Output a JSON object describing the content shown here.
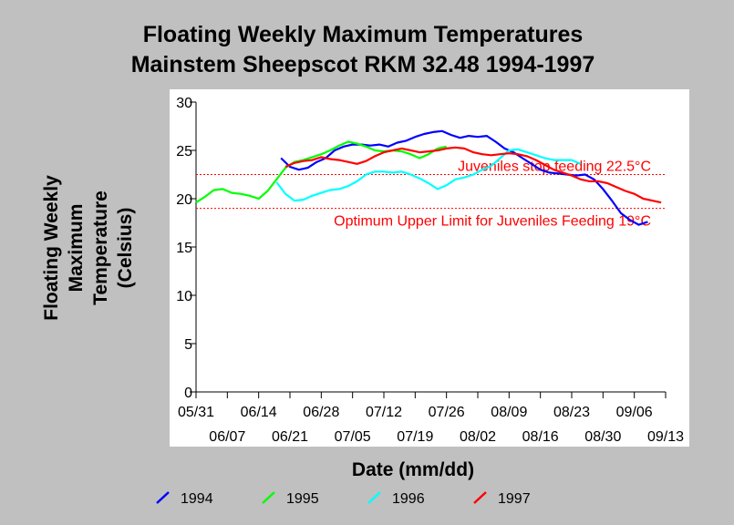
{
  "chart_data": {
    "type": "line",
    "title": [
      "Floating Weekly Maximum Temperatures",
      "Mainstem Sheepscot RKM 32.48 1994-1997"
    ],
    "ylabel": [
      "Floating Weekly",
      "Maximum",
      "Temperature",
      "(Celsius)"
    ],
    "xlabel": "Date (mm/dd)",
    "ylim": [
      0,
      30
    ],
    "yticks": [
      "0",
      "5",
      "10",
      "15",
      "20",
      "25",
      "30"
    ],
    "xlim": [
      0,
      105
    ],
    "xticks": [
      {
        "day": 0,
        "label": "05/31"
      },
      {
        "day": 7,
        "label": "06/07"
      },
      {
        "day": 14,
        "label": "06/14"
      },
      {
        "day": 21,
        "label": "06/21"
      },
      {
        "day": 28,
        "label": "06/28"
      },
      {
        "day": 35,
        "label": "07/05"
      },
      {
        "day": 42,
        "label": "07/12"
      },
      {
        "day": 49,
        "label": "07/19"
      },
      {
        "day": 56,
        "label": "07/26"
      },
      {
        "day": 63,
        "label": "08/02"
      },
      {
        "day": 70,
        "label": "08/09"
      },
      {
        "day": 77,
        "label": "08/16"
      },
      {
        "day": 84,
        "label": "08/23"
      },
      {
        "day": 91,
        "label": "08/30"
      },
      {
        "day": 98,
        "label": "09/06"
      },
      {
        "day": 105,
        "label": "09/13"
      }
    ],
    "grid": false,
    "legend": "bottom",
    "reference_lines": [
      {
        "y": 22.5,
        "label": "Juveniles stop feeding 22.5°C",
        "color": "#ff0000"
      },
      {
        "y": 19,
        "label": "Optimum Upper Limit for Juveniles Feeding 19°C",
        "color": "#ff0000"
      }
    ],
    "series": [
      {
        "name": "1994",
        "color": "#0000ff",
        "points": [
          [
            19,
            24.2
          ],
          [
            21,
            23.3
          ],
          [
            23,
            23.0
          ],
          [
            25,
            23.2
          ],
          [
            27,
            23.8
          ],
          [
            29,
            24.2
          ],
          [
            31,
            25.0
          ],
          [
            33,
            25.4
          ],
          [
            35,
            25.6
          ],
          [
            37,
            25.6
          ],
          [
            39,
            25.5
          ],
          [
            41,
            25.6
          ],
          [
            43,
            25.4
          ],
          [
            45,
            25.8
          ],
          [
            47,
            26.0
          ],
          [
            49,
            26.4
          ],
          [
            51,
            26.7
          ],
          [
            53,
            26.9
          ],
          [
            55,
            27.0
          ],
          [
            57,
            26.6
          ],
          [
            59,
            26.3
          ],
          [
            61,
            26.5
          ],
          [
            63,
            26.4
          ],
          [
            65,
            26.5
          ],
          [
            67,
            25.9
          ],
          [
            69,
            25.2
          ],
          [
            71,
            24.8
          ],
          [
            73,
            24.2
          ],
          [
            75,
            23.6
          ],
          [
            77,
            23.0
          ],
          [
            79,
            22.7
          ],
          [
            81,
            22.6
          ],
          [
            83,
            22.5
          ],
          [
            85,
            22.4
          ],
          [
            87,
            22.5
          ],
          [
            89,
            22.0
          ],
          [
            91,
            21.0
          ],
          [
            93,
            19.8
          ],
          [
            95,
            18.5
          ],
          [
            97,
            17.8
          ],
          [
            99,
            17.3
          ],
          [
            101,
            17.6
          ]
        ]
      },
      {
        "name": "1995",
        "color": "#00ff00",
        "points": [
          [
            0,
            19.6
          ],
          [
            2,
            20.2
          ],
          [
            4,
            20.9
          ],
          [
            6,
            21.0
          ],
          [
            8,
            20.6
          ],
          [
            10,
            20.5
          ],
          [
            12,
            20.3
          ],
          [
            14,
            20.0
          ],
          [
            16,
            20.8
          ],
          [
            18,
            22.0
          ],
          [
            20,
            23.2
          ],
          [
            22,
            23.8
          ],
          [
            24,
            24.0
          ],
          [
            26,
            24.3
          ],
          [
            28,
            24.6
          ],
          [
            30,
            25.0
          ],
          [
            32,
            25.5
          ],
          [
            34,
            25.9
          ],
          [
            36,
            25.7
          ],
          [
            38,
            25.4
          ],
          [
            40,
            25.0
          ],
          [
            42,
            24.9
          ],
          [
            44,
            25.0
          ],
          [
            46,
            24.9
          ],
          [
            48,
            24.6
          ],
          [
            50,
            24.2
          ],
          [
            52,
            24.6
          ],
          [
            54,
            25.2
          ],
          [
            56,
            25.4
          ]
        ]
      },
      {
        "name": "1996",
        "color": "#00ffff",
        "points": [
          [
            18,
            21.7
          ],
          [
            20,
            20.5
          ],
          [
            22,
            19.8
          ],
          [
            24,
            19.9
          ],
          [
            26,
            20.3
          ],
          [
            28,
            20.6
          ],
          [
            30,
            20.9
          ],
          [
            32,
            21.0
          ],
          [
            34,
            21.3
          ],
          [
            36,
            21.8
          ],
          [
            38,
            22.5
          ],
          [
            40,
            22.8
          ],
          [
            42,
            22.8
          ],
          [
            44,
            22.7
          ],
          [
            46,
            22.8
          ],
          [
            48,
            22.5
          ],
          [
            50,
            22.1
          ],
          [
            52,
            21.6
          ],
          [
            54,
            21.0
          ],
          [
            56,
            21.4
          ],
          [
            58,
            22.0
          ],
          [
            60,
            22.2
          ],
          [
            62,
            22.5
          ],
          [
            64,
            23.0
          ],
          [
            66,
            23.4
          ],
          [
            68,
            24.2
          ],
          [
            70,
            25.0
          ],
          [
            72,
            25.1
          ],
          [
            74,
            24.8
          ],
          [
            76,
            24.5
          ],
          [
            78,
            24.2
          ],
          [
            80,
            24.0
          ],
          [
            82,
            24.0
          ],
          [
            84,
            24.0
          ],
          [
            86,
            23.6
          ]
        ]
      },
      {
        "name": "1997",
        "color": "#ff0000",
        "points": [
          [
            20,
            23.3
          ],
          [
            22,
            23.7
          ],
          [
            24,
            23.9
          ],
          [
            26,
            24.0
          ],
          [
            28,
            24.3
          ],
          [
            30,
            24.1
          ],
          [
            32,
            24.0
          ],
          [
            34,
            23.8
          ],
          [
            36,
            23.6
          ],
          [
            38,
            23.9
          ],
          [
            40,
            24.4
          ],
          [
            42,
            24.8
          ],
          [
            44,
            25.0
          ],
          [
            46,
            25.2
          ],
          [
            48,
            25.0
          ],
          [
            50,
            24.8
          ],
          [
            52,
            24.9
          ],
          [
            54,
            25.0
          ],
          [
            56,
            25.2
          ],
          [
            58,
            25.3
          ],
          [
            60,
            25.2
          ],
          [
            62,
            24.8
          ],
          [
            64,
            24.6
          ],
          [
            66,
            24.5
          ],
          [
            68,
            24.6
          ],
          [
            70,
            24.7
          ],
          [
            72,
            24.6
          ],
          [
            74,
            24.4
          ],
          [
            76,
            24.0
          ],
          [
            78,
            23.5
          ],
          [
            80,
            23.0
          ],
          [
            82,
            22.7
          ],
          [
            84,
            22.4
          ],
          [
            86,
            22.0
          ],
          [
            88,
            21.8
          ],
          [
            90,
            21.8
          ],
          [
            92,
            21.6
          ],
          [
            94,
            21.2
          ],
          [
            96,
            20.8
          ],
          [
            98,
            20.5
          ],
          [
            100,
            20.0
          ],
          [
            102,
            19.8
          ],
          [
            104,
            19.6
          ]
        ]
      }
    ]
  }
}
